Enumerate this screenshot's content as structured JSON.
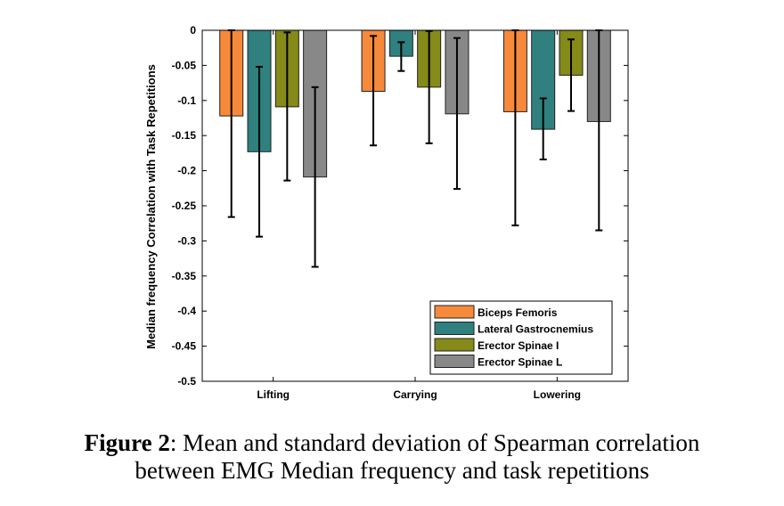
{
  "chart_data": {
    "type": "bar",
    "ylabel": "Median frequency Correlation with Task Repetitions",
    "xlabel": "",
    "ylim": [
      -0.5,
      0
    ],
    "yticks": [
      0,
      -0.05,
      -0.1,
      -0.15,
      -0.2,
      -0.25,
      -0.3,
      -0.35,
      -0.4,
      -0.45,
      -0.5
    ],
    "ytick_labels": [
      "0",
      "-0.05",
      "-0.1",
      "-0.15",
      "-0.2",
      "-0.25",
      "-0.3",
      "-0.35",
      "-0.4",
      "-0.45",
      "-0.5"
    ],
    "categories": [
      "Lifting",
      "Carrying",
      "Lowering"
    ],
    "series": [
      {
        "name": "Biceps Femoris",
        "color": "#F7893B",
        "values": [
          -0.122,
          -0.087,
          -0.116
        ],
        "err_low": [
          -0.266,
          -0.164,
          -0.278
        ],
        "err_high": [
          0.0,
          -0.008,
          0.0
        ]
      },
      {
        "name": "Lateral Gastrocnemius",
        "color": "#2F807E",
        "values": [
          -0.173,
          -0.037,
          -0.141
        ],
        "err_low": [
          -0.294,
          -0.058,
          -0.184
        ],
        "err_high": [
          -0.052,
          -0.017,
          -0.097
        ]
      },
      {
        "name": "Erector Spinae I",
        "color": "#858A18",
        "values": [
          -0.109,
          -0.081,
          -0.064
        ],
        "err_low": [
          -0.214,
          -0.161,
          -0.115
        ],
        "err_high": [
          -0.003,
          -0.001,
          -0.013
        ]
      },
      {
        "name": "Erector Spinae L",
        "color": "#888888",
        "values": [
          -0.209,
          -0.119,
          -0.13
        ],
        "err_low": [
          -0.337,
          -0.226,
          -0.285
        ],
        "err_high": [
          -0.081,
          -0.011,
          0.0
        ]
      }
    ],
    "legend_position": "bottom-right",
    "grid": false
  },
  "caption": {
    "bold": "Figure 2",
    "text": ": Mean and standard deviation of Spearman correlation",
    "line2": "between EMG Median frequency and task repetitions"
  }
}
